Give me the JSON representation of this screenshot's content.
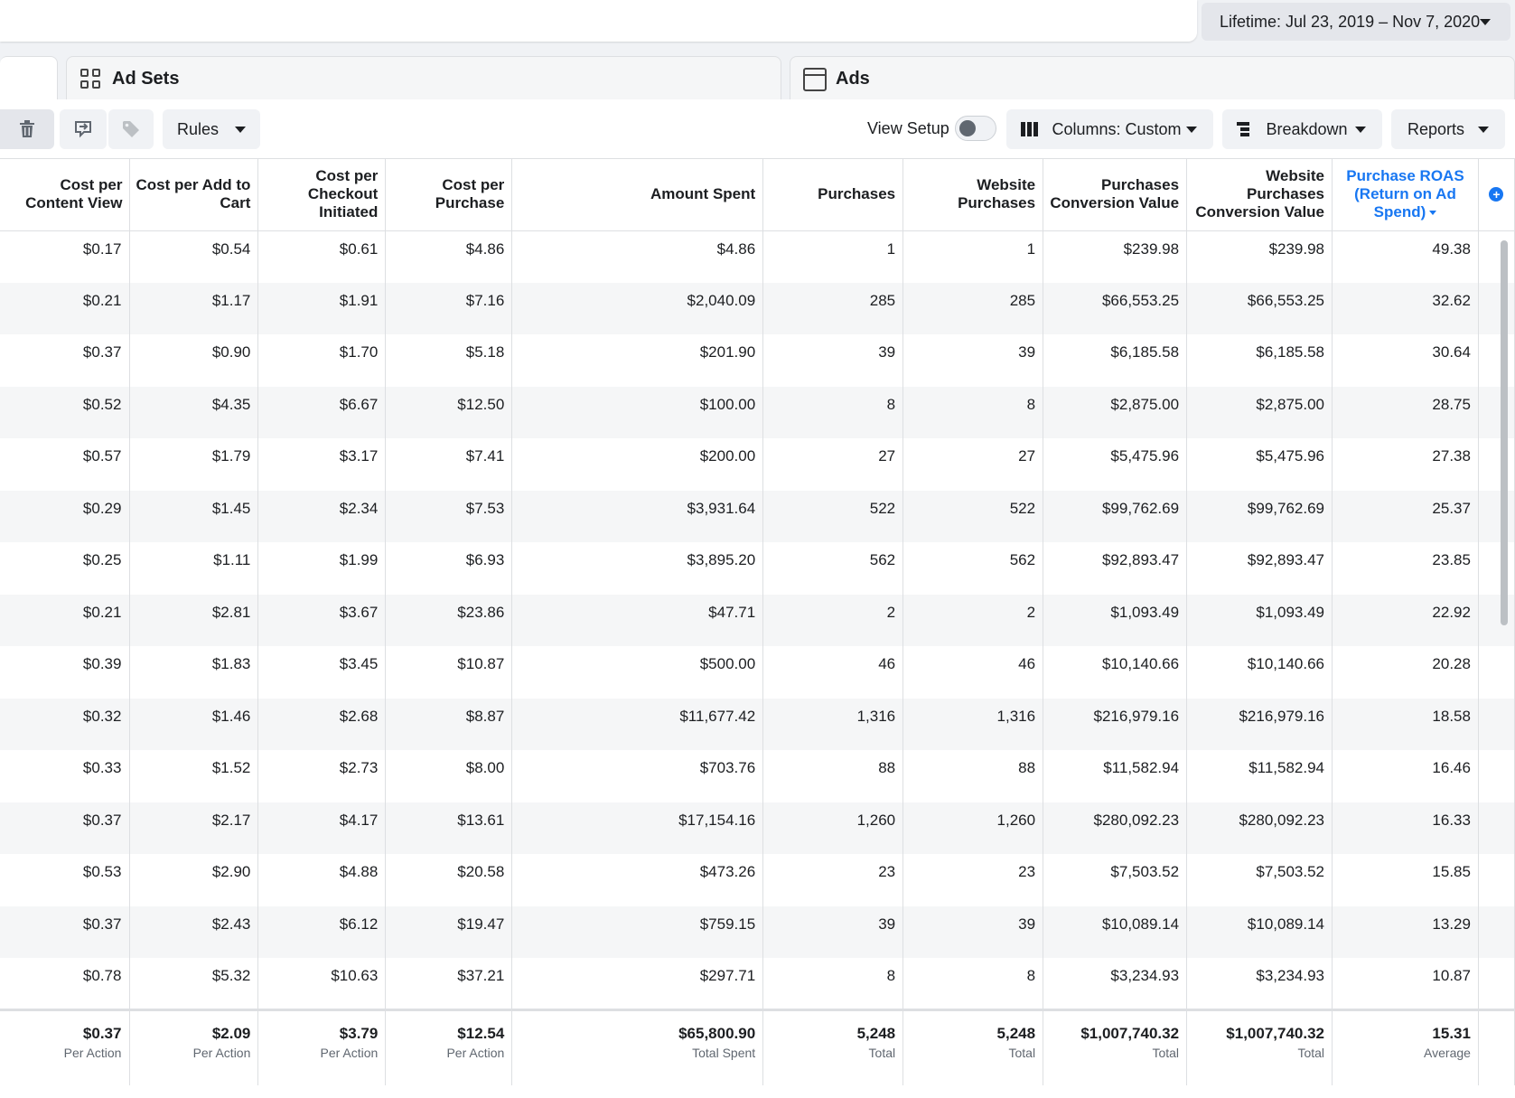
{
  "header": {
    "date_range": "Lifetime: Jul 23, 2019 – Nov 7, 2020"
  },
  "tabs": {
    "ad_sets": "Ad Sets",
    "ads": "Ads"
  },
  "toolbar": {
    "rules": "Rules",
    "view_setup": "View Setup",
    "view_setup_on": false,
    "columns": "Columns: Custom",
    "breakdown": "Breakdown",
    "reports": "Reports",
    "icons": [
      "trash-icon",
      "duplicate-icon",
      "tag-icon"
    ]
  },
  "table": {
    "headers": [
      "Cost per Content View",
      "Cost per Add to Cart",
      "Cost per Checkout Initiated",
      "Cost per Purchase",
      "Amount Spent",
      "Purchases",
      "Website Purchases",
      "Purchases Conversion Value",
      "Website Purchases Conversion Value",
      "Purchase ROAS (Return on Ad Spend)"
    ],
    "rows": [
      [
        "$0.17",
        "$0.54",
        "$0.61",
        "$4.86",
        "$4.86",
        "1",
        "1",
        "$239.98",
        "$239.98",
        "49.38"
      ],
      [
        "$0.21",
        "$1.17",
        "$1.91",
        "$7.16",
        "$2,040.09",
        "285",
        "285",
        "$66,553.25",
        "$66,553.25",
        "32.62"
      ],
      [
        "$0.37",
        "$0.90",
        "$1.70",
        "$5.18",
        "$201.90",
        "39",
        "39",
        "$6,185.58",
        "$6,185.58",
        "30.64"
      ],
      [
        "$0.52",
        "$4.35",
        "$6.67",
        "$12.50",
        "$100.00",
        "8",
        "8",
        "$2,875.00",
        "$2,875.00",
        "28.75"
      ],
      [
        "$0.57",
        "$1.79",
        "$3.17",
        "$7.41",
        "$200.00",
        "27",
        "27",
        "$5,475.96",
        "$5,475.96",
        "27.38"
      ],
      [
        "$0.29",
        "$1.45",
        "$2.34",
        "$7.53",
        "$3,931.64",
        "522",
        "522",
        "$99,762.69",
        "$99,762.69",
        "25.37"
      ],
      [
        "$0.25",
        "$1.11",
        "$1.99",
        "$6.93",
        "$3,895.20",
        "562",
        "562",
        "$92,893.47",
        "$92,893.47",
        "23.85"
      ],
      [
        "$0.21",
        "$2.81",
        "$3.67",
        "$23.86",
        "$47.71",
        "2",
        "2",
        "$1,093.49",
        "$1,093.49",
        "22.92"
      ],
      [
        "$0.39",
        "$1.83",
        "$3.45",
        "$10.87",
        "$500.00",
        "46",
        "46",
        "$10,140.66",
        "$10,140.66",
        "20.28"
      ],
      [
        "$0.32",
        "$1.46",
        "$2.68",
        "$8.87",
        "$11,677.42",
        "1,316",
        "1,316",
        "$216,979.16",
        "$216,979.16",
        "18.58"
      ],
      [
        "$0.33",
        "$1.52",
        "$2.73",
        "$8.00",
        "$703.76",
        "88",
        "88",
        "$11,582.94",
        "$11,582.94",
        "16.46"
      ],
      [
        "$0.37",
        "$2.17",
        "$4.17",
        "$13.61",
        "$17,154.16",
        "1,260",
        "1,260",
        "$280,092.23",
        "$280,092.23",
        "16.33"
      ],
      [
        "$0.53",
        "$2.90",
        "$4.88",
        "$20.58",
        "$473.26",
        "23",
        "23",
        "$7,503.52",
        "$7,503.52",
        "15.85"
      ],
      [
        "$0.37",
        "$2.43",
        "$6.12",
        "$19.47",
        "$759.15",
        "39",
        "39",
        "$10,089.14",
        "$10,089.14",
        "13.29"
      ],
      [
        "$0.78",
        "$5.32",
        "$10.63",
        "$37.21",
        "$297.71",
        "8",
        "8",
        "$3,234.93",
        "$3,234.93",
        "10.87"
      ]
    ],
    "totals": [
      {
        "value": "$0.37",
        "label": "Per Action"
      },
      {
        "value": "$2.09",
        "label": "Per Action"
      },
      {
        "value": "$3.79",
        "label": "Per Action"
      },
      {
        "value": "$12.54",
        "label": "Per Action"
      },
      {
        "value": "$65,800.90",
        "label": "Total Spent"
      },
      {
        "value": "5,248",
        "label": "Total"
      },
      {
        "value": "5,248",
        "label": "Total"
      },
      {
        "value": "$1,007,740.32",
        "label": "Total"
      },
      {
        "value": "$1,007,740.32",
        "label": "Total"
      },
      {
        "value": "15.31",
        "label": "Average"
      }
    ]
  },
  "colors": {
    "accent": "#1877f2",
    "row_alt": "#f5f6f7",
    "border": "#dddfe2"
  }
}
